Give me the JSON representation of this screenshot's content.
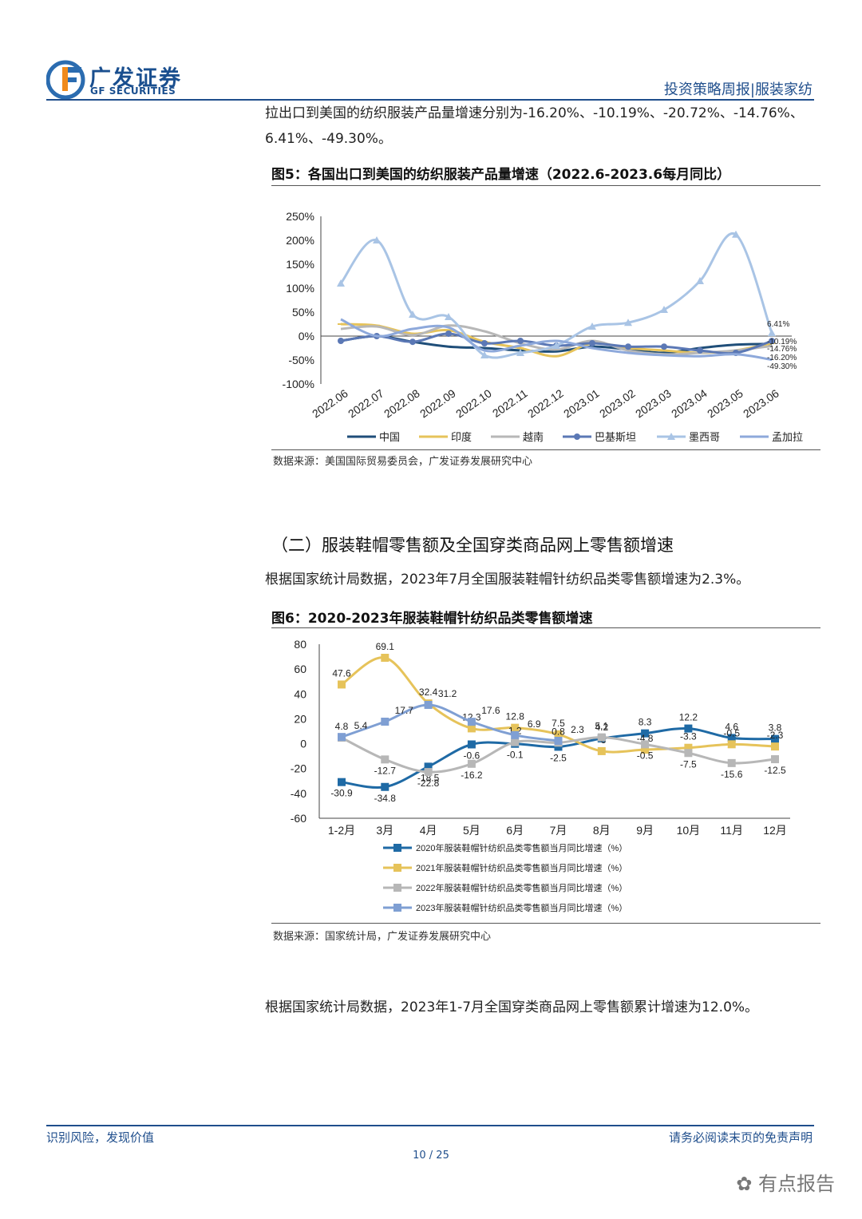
{
  "header": {
    "logo_cn": "广发证券",
    "logo_en": "GF SECURITIES",
    "report": "投资策略周报|服装家纺"
  },
  "paras": {
    "p1": "拉出口到美国的纺织服装产品量增速分别为-16.20%、-10.19%、-20.72%、-14.76%、6.41%、-49.30%。",
    "p2": "根据国家统计局数据，2023年7月全国服装鞋帽针纺织品类零售额增速为2.3%。",
    "p3": "根据国家统计局数据，2023年1-7月全国穿类商品网上零售额累计增速为12.0%。"
  },
  "fig5": {
    "title": "图5：各国出口到美国的纺织服装产品量增速（2022.6-2023.6每月同比）",
    "source": "数据来源：美国国际贸易委员会，广发证券发展研究中心"
  },
  "section": {
    "title": "（二）服装鞋帽零售额及全国穿类商品网上零售额增速"
  },
  "fig6": {
    "title": "图6：2020-2023年服装鞋帽针纺织品类零售额增速",
    "source": "数据来源：国家统计局，广发证券发展研究中心"
  },
  "footer": {
    "left": "识别风险，发现价值",
    "right": "请务必阅读末页的免责声明",
    "page": "10 / 25",
    "watermark": "有点报告"
  },
  "chart_data": [
    {
      "type": "line",
      "categories": [
        "2022.06",
        "2022.07",
        "2022.08",
        "2022.09",
        "2022.10",
        "2022.11",
        "2022.12",
        "2023.01",
        "2023.02",
        "2023.03",
        "2023.04",
        "2023.05",
        "2023.06"
      ],
      "y_ticks": [
        "250%",
        "200%",
        "150%",
        "100%",
        "50%",
        "0%",
        "-50%",
        "-100%"
      ],
      "ylim": [
        -100,
        250
      ],
      "end_labels": [
        "6.41%",
        "-10.19%",
        "-14.76%",
        "-16.20%",
        "-49.30%"
      ],
      "series": [
        {
          "name": "中国",
          "color": "#1f4e79",
          "marker": "none",
          "values": [
            -10,
            0,
            -12,
            -22,
            -25,
            -30,
            -32,
            -22,
            -28,
            -35,
            -25,
            -18,
            -16.2
          ]
        },
        {
          "name": "印度",
          "color": "#e6c35a",
          "marker": "dash",
          "values": [
            25,
            22,
            5,
            12,
            -12,
            -25,
            -42,
            -15,
            -25,
            -30,
            -35,
            -30,
            -14.76
          ]
        },
        {
          "name": "越南",
          "color": "#b7b7b7",
          "marker": "none",
          "values": [
            15,
            20,
            2,
            22,
            10,
            -15,
            -28,
            -10,
            -30,
            -38,
            -35,
            -30,
            -20.72
          ]
        },
        {
          "name": "巴基斯坦",
          "color": "#5b78b5",
          "marker": "circle",
          "values": [
            -10,
            0,
            -12,
            5,
            -15,
            -10,
            -20,
            -15,
            -22,
            -22,
            -30,
            -35,
            -10.19
          ]
        },
        {
          "name": "墨西哥",
          "color": "#a9c4e5",
          "marker": "triangle",
          "values": [
            110,
            200,
            45,
            40,
            -40,
            -35,
            -20,
            20,
            28,
            55,
            115,
            212,
            6.41
          ]
        },
        {
          "name": "孟加拉",
          "color": "#8ea9db",
          "marker": "none",
          "values": [
            35,
            0,
            15,
            18,
            -30,
            -20,
            -10,
            -25,
            -35,
            -40,
            -42,
            -38,
            -49.3
          ]
        }
      ]
    },
    {
      "type": "line",
      "categories": [
        "1-2月",
        "3月",
        "4月",
        "5月",
        "6月",
        "7月",
        "8月",
        "9月",
        "10月",
        "11月",
        "12月"
      ],
      "y_ticks": [
        "80",
        "60",
        "40",
        "20",
        "0",
        "-20",
        "-40",
        "-60"
      ],
      "ylim": [
        -60,
        80
      ],
      "series": [
        {
          "name": "2020年服装鞋帽针纺织品类零售额当月同比增速（%）",
          "color": "#1f6aa5",
          "values": [
            -30.9,
            -34.8,
            -18.5,
            -0.6,
            -0.1,
            -2.5,
            4.2,
            8.3,
            12.2,
            4.6,
            3.8
          ],
          "labels": [
            "-30.9",
            "-34.8",
            "-18.5",
            "-0.6",
            "-0.1",
            "-2.5",
            "4.2",
            "8.3",
            "12.2",
            "4.6",
            "3.8"
          ]
        },
        {
          "name": "2021年服装鞋帽针纺织品类零售额当月同比增速（%）",
          "color": "#e6c35a",
          "values": [
            47.6,
            69.1,
            32.4,
            12.3,
            12.8,
            7.5,
            -6,
            -4.8,
            -3.3,
            -0.5,
            -2.3
          ],
          "labels": [
            "47.6",
            "69.1",
            "32.4",
            "12.3",
            "12.8",
            "7.5",
            "-6",
            "-4.8",
            "-3.3",
            "-0.5",
            "-2.3"
          ]
        },
        {
          "name": "2022年服装鞋帽针纺织品类零售额当月同比增速（%）",
          "color": "#b7b7b7",
          "values": [
            4.8,
            -12.7,
            -22.8,
            -16.2,
            1.2,
            0.8,
            5.1,
            -0.5,
            -7.5,
            -15.6,
            -12.5
          ],
          "labels": [
            "4.8",
            "-12.7",
            "-22.8",
            "-16.2",
            "1.2",
            "0.8",
            "5.1",
            "-0.5",
            "-7.5",
            "-15.6",
            "-12.5"
          ]
        },
        {
          "name": "2023年服装鞋帽针纺织品类零售额当月同比增速（%）",
          "color": "#7f9fd3",
          "values": [
            5.4,
            17.7,
            31.2,
            17.6,
            6.9,
            2.3,
            null,
            null,
            null,
            null,
            null
          ],
          "labels": [
            "5.4",
            "17.7",
            "31.2",
            "17.6",
            "6.9",
            "2.3",
            "",
            "",
            "",
            "",
            ""
          ]
        }
      ]
    }
  ]
}
